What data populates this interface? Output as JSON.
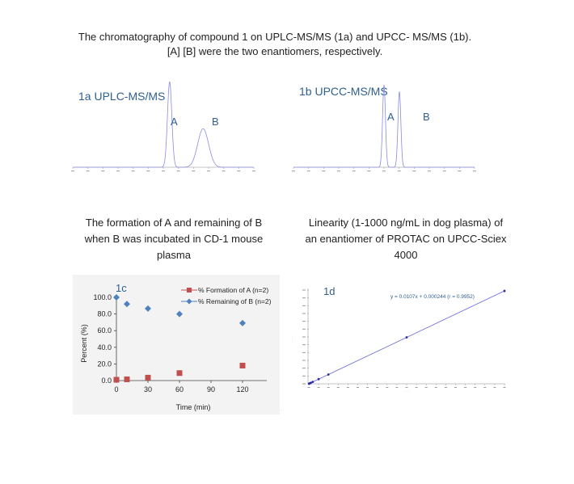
{
  "header": {
    "line1": "The chromatography of compound 1 on UPLC-MS/MS (1a) and UPCC- MS/MS (1b).",
    "line2": "[A] [B] were the two enantiomers, respectively."
  },
  "captions": {
    "c_line1": "The formation of A and remaining of B",
    "c_line2": "when B was incubated in CD-1 mouse",
    "c_line3": "plasma",
    "d_line1": "Linearity (1-1000 ng/mL in dog plasma) of",
    "d_line2": "an enantiomer of PROTAC on UPCC-Sciex",
    "d_line3": "4000"
  },
  "colors": {
    "chromatogram": "#8a8ae0",
    "panel_label": "#2e5f8f",
    "formation": "#c0504d",
    "remaining": "#4f81bd",
    "fit_line": "#6666dd"
  },
  "chart_data": [
    {
      "panel": "1a",
      "type": "line",
      "label": "1a UPLC-MS/MS",
      "peaks": [
        {
          "name": "A",
          "position": 0.535,
          "height": 1.0
        },
        {
          "name": "B",
          "position": 0.72,
          "height": 0.45
        }
      ],
      "grid": false
    },
    {
      "panel": "1b",
      "type": "line",
      "label": "1b UPCC-MS/MS",
      "peaks": [
        {
          "name": "A",
          "position": 0.5,
          "height": 1.0
        },
        {
          "name": "B",
          "position": 0.585,
          "height": 0.92
        }
      ],
      "grid": false
    },
    {
      "panel": "1c",
      "type": "scatter",
      "label": "1c",
      "xlabel": "Time (min)",
      "ylabel": "Percent (%)",
      "xticks": [
        "0",
        "30",
        "60",
        "90",
        "120"
      ],
      "yticks": [
        "0.0",
        "20.0",
        "40.0",
        "60.0",
        "80.0",
        "100.0"
      ],
      "xlim": [
        0,
        120
      ],
      "ylim": [
        0,
        100
      ],
      "legend_position": "top-right",
      "series": [
        {
          "name": "% Formation of A (n=2)",
          "marker": "square",
          "x": [
            0,
            10,
            30,
            60,
            120
          ],
          "y": [
            1.0,
            1.5,
            3.5,
            9.0,
            18.0
          ]
        },
        {
          "name": "% Remaining of B (n=2)",
          "marker": "diamond",
          "x": [
            0,
            10,
            30,
            60,
            120
          ],
          "y": [
            100.0,
            92.0,
            86.5,
            80.0,
            69.0
          ]
        }
      ],
      "grid": false
    },
    {
      "panel": "1d",
      "type": "scatter",
      "label": "1d",
      "equation": "y = 0.0107x + 0.000244 (r = 0.9952)",
      "xlim": [
        0,
        100
      ],
      "ylim": [
        0,
        2.0
      ],
      "fit": {
        "slope": 0.0107,
        "intercept": 0.000244
      },
      "x": [
        0.1,
        0.2,
        0.5,
        1,
        2,
        5,
        10,
        50,
        100
      ],
      "y": [
        0.0013,
        0.0024,
        0.0056,
        0.011,
        0.022,
        0.054,
        0.107,
        0.535,
        1.07
      ],
      "grid": false
    }
  ]
}
